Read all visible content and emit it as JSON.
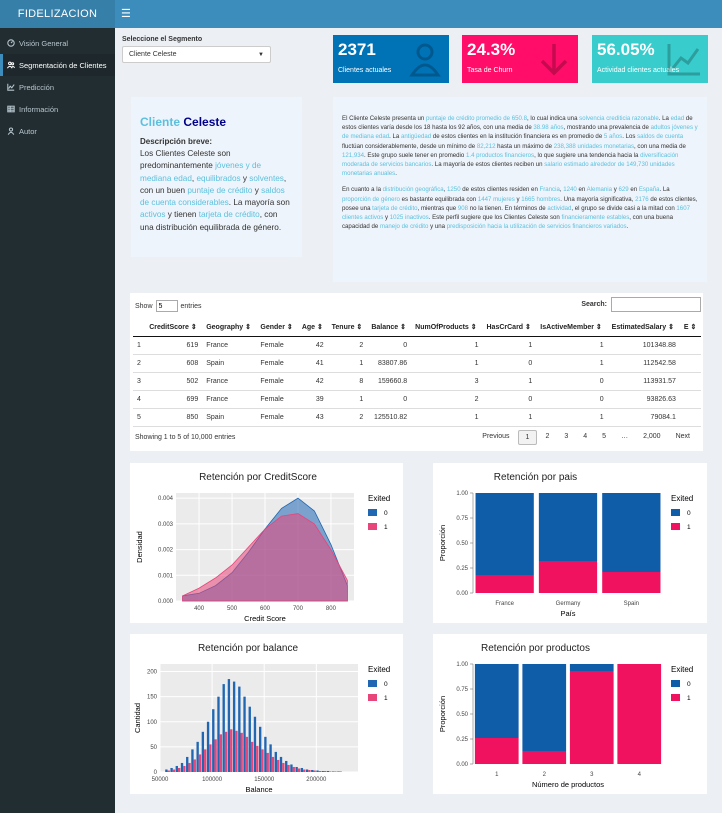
{
  "app": {
    "title": "FIDELIZACION"
  },
  "sidebar": {
    "items": [
      {
        "label": "Visión General",
        "icon": "dashboard-icon"
      },
      {
        "label": "Segmentación de Clientes",
        "icon": "users-icon"
      },
      {
        "label": "Predicción",
        "icon": "line-chart-icon"
      },
      {
        "label": "Información",
        "icon": "table-icon"
      },
      {
        "label": "Autor",
        "icon": "user-icon"
      }
    ],
    "active": 1
  },
  "segment": {
    "label": "Seleccione el Segmento",
    "value": "Cliente Celeste"
  },
  "kpis": [
    {
      "value": "2371",
      "label": "Clientes actuales",
      "color": "#0073b7",
      "icon": "user-icon"
    },
    {
      "value": "24.3%",
      "label": "Tasa de Churn",
      "color": "#ff0d68",
      "icon": "arrow-down-icon"
    },
    {
      "value": "56.05%",
      "label": "Actividad clientes actuales",
      "color": "#39cccc",
      "icon": "line-chart-icon"
    }
  ],
  "description": {
    "title_a": "Cliente",
    "title_b": "Celeste",
    "subtitle": "Descripción breve:",
    "text": [
      {
        "t": "Los Clientes Celeste son predominantemente "
      },
      {
        "t": "jóvenes y de mediana edad",
        "h": 1
      },
      {
        "t": ", "
      },
      {
        "t": "equilibrados",
        "h": 1
      },
      {
        "t": " y "
      },
      {
        "t": "solventes",
        "h": 1
      },
      {
        "t": ", con un buen "
      },
      {
        "t": "puntaje de crédito",
        "h": 1
      },
      {
        "t": " y "
      },
      {
        "t": "saldos de cuenta considerables",
        "h": 1
      },
      {
        "t": ". La mayoría son "
      },
      {
        "t": "activos",
        "h": 1
      },
      {
        "t": " y tienen "
      },
      {
        "t": "tarjeta de crédito",
        "h": 1
      },
      {
        "t": ", con una distribución equilibrada de género."
      }
    ]
  },
  "long_text": [
    [
      {
        "t": "El Cliente Celeste presenta un "
      },
      {
        "t": "puntaje de crédito promedio de 650.8",
        "h": 1
      },
      {
        "t": ", lo cual indica una "
      },
      {
        "t": "solvencia crediticia razonable",
        "h": 1
      },
      {
        "t": ". La "
      },
      {
        "t": "edad",
        "h": 1
      },
      {
        "t": " de estos clientes varía desde los 18 hasta los 92 años, con una media de "
      },
      {
        "t": "38.98 años",
        "h": 1
      },
      {
        "t": ", mostrando una prevalencia de "
      },
      {
        "t": "adultos jóvenes y de mediana edad",
        "h": 1
      },
      {
        "t": ". La "
      },
      {
        "t": "antigüedad",
        "h": 1
      },
      {
        "t": " de estos clientes en la institución financiera es en promedio de "
      },
      {
        "t": "5 años",
        "h": 1
      },
      {
        "t": ". Los "
      },
      {
        "t": "saldos de cuenta",
        "h": 1
      },
      {
        "t": " fluctúan considerablemente, desde un mínimo de "
      },
      {
        "t": "82,212",
        "h": 1
      },
      {
        "t": " hasta un máximo de "
      },
      {
        "t": "238,388 unidades monetarias",
        "h": 1
      },
      {
        "t": ", con una media de "
      },
      {
        "t": "121,934",
        "h": 1
      },
      {
        "t": ". Este grupo suele tener en promedio "
      },
      {
        "t": "1.4 productos financieros",
        "h": 1
      },
      {
        "t": ", lo que sugiere una tendencia hacia la "
      },
      {
        "t": "diversificación moderada de servicios bancarios",
        "h": 1
      },
      {
        "t": ". La mayoría de estos clientes reciben un "
      },
      {
        "t": "salario estimado alrededor de 149,730 unidades monetarias anuales",
        "h": 1
      },
      {
        "t": "."
      }
    ],
    [
      {
        "t": "En cuanto a la "
      },
      {
        "t": "distribución geográfica",
        "h": 1
      },
      {
        "t": ", "
      },
      {
        "t": "1250",
        "h": 1
      },
      {
        "t": " de estos clientes residen en "
      },
      {
        "t": "Francia",
        "h": 1
      },
      {
        "t": ", "
      },
      {
        "t": "1240",
        "h": 1
      },
      {
        "t": " en "
      },
      {
        "t": "Alemania",
        "h": 1
      },
      {
        "t": " y "
      },
      {
        "t": "629",
        "h": 1
      },
      {
        "t": " en "
      },
      {
        "t": "España",
        "h": 1
      },
      {
        "t": ". La "
      },
      {
        "t": "proporción de género",
        "h": 1
      },
      {
        "t": " es bastante equilibrada con "
      },
      {
        "t": "1447 mujeres",
        "h": 1
      },
      {
        "t": " y "
      },
      {
        "t": "1665 hombres",
        "h": 1
      },
      {
        "t": ". Una mayoría significativa, "
      },
      {
        "t": "2176",
        "h": 1
      },
      {
        "t": " de estos clientes, posee una "
      },
      {
        "t": "tarjeta de crédito",
        "h": 1
      },
      {
        "t": ", mientras que "
      },
      {
        "t": "908",
        "h": 1
      },
      {
        "t": " no la tienen. En términos de "
      },
      {
        "t": "actividad",
        "h": 1
      },
      {
        "t": ", el grupo se divide casi a la mitad con "
      },
      {
        "t": "1607 clientes activos",
        "h": 1
      },
      {
        "t": " y "
      },
      {
        "t": "1025 inactivos",
        "h": 1
      },
      {
        "t": ". Este perfil sugiere que los Clientes Celeste son "
      },
      {
        "t": "financieramente estables",
        "h": 1
      },
      {
        "t": ", con una buena capacidad de "
      },
      {
        "t": "manejo de crédito",
        "h": 1
      },
      {
        "t": " y una "
      },
      {
        "t": "predisposición hacia la utilización de servicios financieros variados",
        "h": 1
      },
      {
        "t": "."
      }
    ]
  ],
  "table": {
    "show_label": "Show",
    "show_value": "5",
    "entries_label": "entries",
    "search_label": "Search:",
    "columns": [
      "",
      "CreditScore",
      "Geography",
      "Gender",
      "Age",
      "Tenure",
      "Balance",
      "NumOfProducts",
      "HasCrCard",
      "IsActiveMember",
      "EstimatedSalary",
      "E"
    ],
    "rows": [
      [
        "1",
        "619",
        "France",
        "Female",
        "42",
        "2",
        "0",
        "1",
        "1",
        "1",
        "101348.88",
        ""
      ],
      [
        "2",
        "608",
        "Spain",
        "Female",
        "41",
        "1",
        "83807.86",
        "1",
        "0",
        "1",
        "112542.58",
        ""
      ],
      [
        "3",
        "502",
        "France",
        "Female",
        "42",
        "8",
        "159660.8",
        "3",
        "1",
        "0",
        "113931.57",
        ""
      ],
      [
        "4",
        "699",
        "France",
        "Female",
        "39",
        "1",
        "0",
        "2",
        "0",
        "0",
        "93826.63",
        ""
      ],
      [
        "5",
        "850",
        "Spain",
        "Female",
        "43",
        "2",
        "125510.82",
        "1",
        "1",
        "1",
        "79084.1",
        ""
      ]
    ],
    "info": "Showing 1 to 5 of 10,000 entries",
    "pager": [
      "Previous",
      "1",
      "2",
      "3",
      "4",
      "5",
      "…",
      "2,000",
      "Next"
    ]
  },
  "charts": {
    "credit": {
      "title": "Retención por CreditScore",
      "xlabel": "Credit Score",
      "ylabel": "Densidad",
      "legend_title": "Exited",
      "series": [
        "0",
        "1"
      ],
      "colors": [
        "#1f66b3",
        "#e8457a"
      ],
      "x": [
        350,
        400,
        450,
        500,
        550,
        600,
        650,
        700,
        750,
        800,
        850
      ],
      "y0": [
        0.0002,
        0.0003,
        0.0006,
        0.0011,
        0.0019,
        0.0028,
        0.0036,
        0.004,
        0.0035,
        0.0022,
        0.0006
      ],
      "y1": [
        0.0002,
        0.0005,
        0.0009,
        0.0014,
        0.0021,
        0.0028,
        0.0033,
        0.0034,
        0.003,
        0.002,
        0.0008
      ],
      "xlim": [
        330,
        870
      ],
      "ylim": [
        0,
        0.0042
      ],
      "yticks": [
        "0.000",
        "0.001",
        "0.002",
        "0.003",
        "0.004"
      ],
      "xticks": [
        "400",
        "500",
        "600",
        "700",
        "800"
      ]
    },
    "pais": {
      "title": "Retención por pais",
      "xlabel": "País",
      "ylabel": "Proporción",
      "legend_title": "Exited",
      "series": [
        "0",
        "1"
      ],
      "colors": [
        "#0f5ca8",
        "#f0125f"
      ],
      "categories": [
        "France",
        "Germany",
        "Spain"
      ],
      "exited": [
        0.18,
        0.32,
        0.21
      ],
      "yticks": [
        "0.00",
        "0.25",
        "0.50",
        "0.75",
        "1.00"
      ]
    },
    "balance": {
      "title": "Retención por balance",
      "xlabel": "Balance",
      "ylabel": "Cantidad",
      "legend_title": "Exited",
      "series": [
        "0",
        "1"
      ],
      "colors": [
        "#1f66b3",
        "#e8457a"
      ],
      "bins": [
        55000,
        60000,
        65000,
        70000,
        75000,
        80000,
        85000,
        90000,
        95000,
        100000,
        105000,
        110000,
        115000,
        120000,
        125000,
        130000,
        135000,
        140000,
        145000,
        150000,
        155000,
        160000,
        165000,
        170000,
        175000,
        180000,
        185000,
        190000,
        195000,
        200000,
        205000,
        210000,
        215000,
        220000
      ],
      "c0": [
        5,
        8,
        12,
        18,
        30,
        45,
        60,
        80,
        100,
        125,
        150,
        175,
        185,
        180,
        170,
        150,
        130,
        110,
        90,
        70,
        55,
        40,
        30,
        22,
        15,
        10,
        8,
        5,
        4,
        3,
        2,
        2,
        1,
        1
      ],
      "c1": [
        3,
        5,
        8,
        12,
        18,
        25,
        35,
        45,
        55,
        65,
        75,
        80,
        85,
        82,
        78,
        70,
        60,
        52,
        45,
        38,
        30,
        24,
        18,
        14,
        10,
        7,
        5,
        4,
        3,
        2,
        2,
        1,
        1,
        1
      ],
      "xlim": [
        50000,
        240000
      ],
      "ylim": [
        0,
        215
      ],
      "yticks": [
        "0",
        "50",
        "100",
        "150",
        "200"
      ],
      "xticks": [
        "50000",
        "100000",
        "150000",
        "200000"
      ]
    },
    "productos": {
      "title": "Retención por productos",
      "xlabel": "Número de productos",
      "ylabel": "Proporción",
      "legend_title": "Exited",
      "series": [
        "0",
        "1"
      ],
      "colors": [
        "#0f5ca8",
        "#f0125f"
      ],
      "categories": [
        "1",
        "2",
        "3",
        "4"
      ],
      "exited": [
        0.26,
        0.13,
        0.93,
        1.0
      ],
      "yticks": [
        "0.00",
        "0.25",
        "0.50",
        "0.75",
        "1.00"
      ]
    }
  }
}
